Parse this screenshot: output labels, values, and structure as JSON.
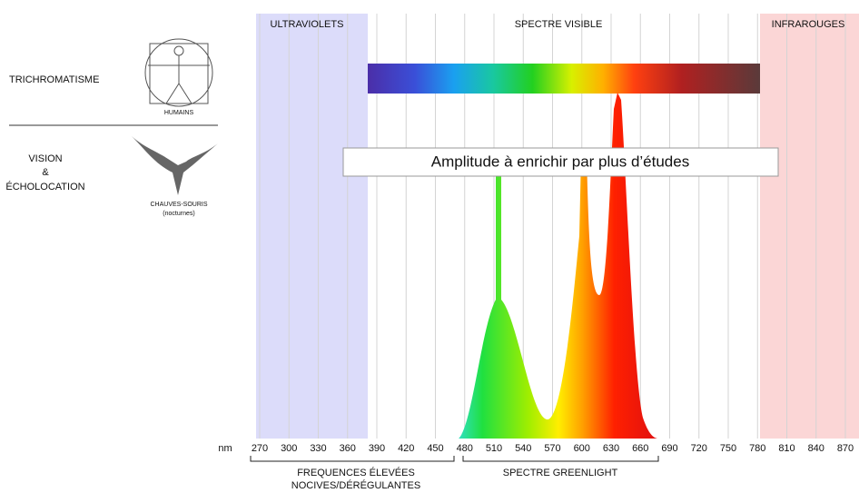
{
  "header": {
    "left_title": "TRICHROMATISME",
    "humans_caption": "HUMAINS",
    "bat_lines": [
      "VISION",
      "&",
      "ÉCHOLOCATION"
    ],
    "bat_caption": [
      "CHAUVES-SOURIS",
      "(nocturnes)"
    ]
  },
  "bands": {
    "uv": "ULTRAVIOLETS",
    "visible": "SPECTRE VISIBLE",
    "ir": "INFRAROUGES"
  },
  "note": "Amplitude à enrichir par plus d’études",
  "axis": {
    "unit": "nm",
    "ticks": [
      270,
      300,
      330,
      360,
      390,
      420,
      450,
      480,
      510,
      540,
      570,
      600,
      630,
      660,
      690,
      720,
      750,
      780,
      810,
      840,
      870
    ]
  },
  "brackets": {
    "high": [
      "FREQUENCES ÉLEVÉES",
      "NOCIVES/DÉRÉGULANTES"
    ],
    "greenlight": "SPECTRE GREENLIGHT"
  }
}
